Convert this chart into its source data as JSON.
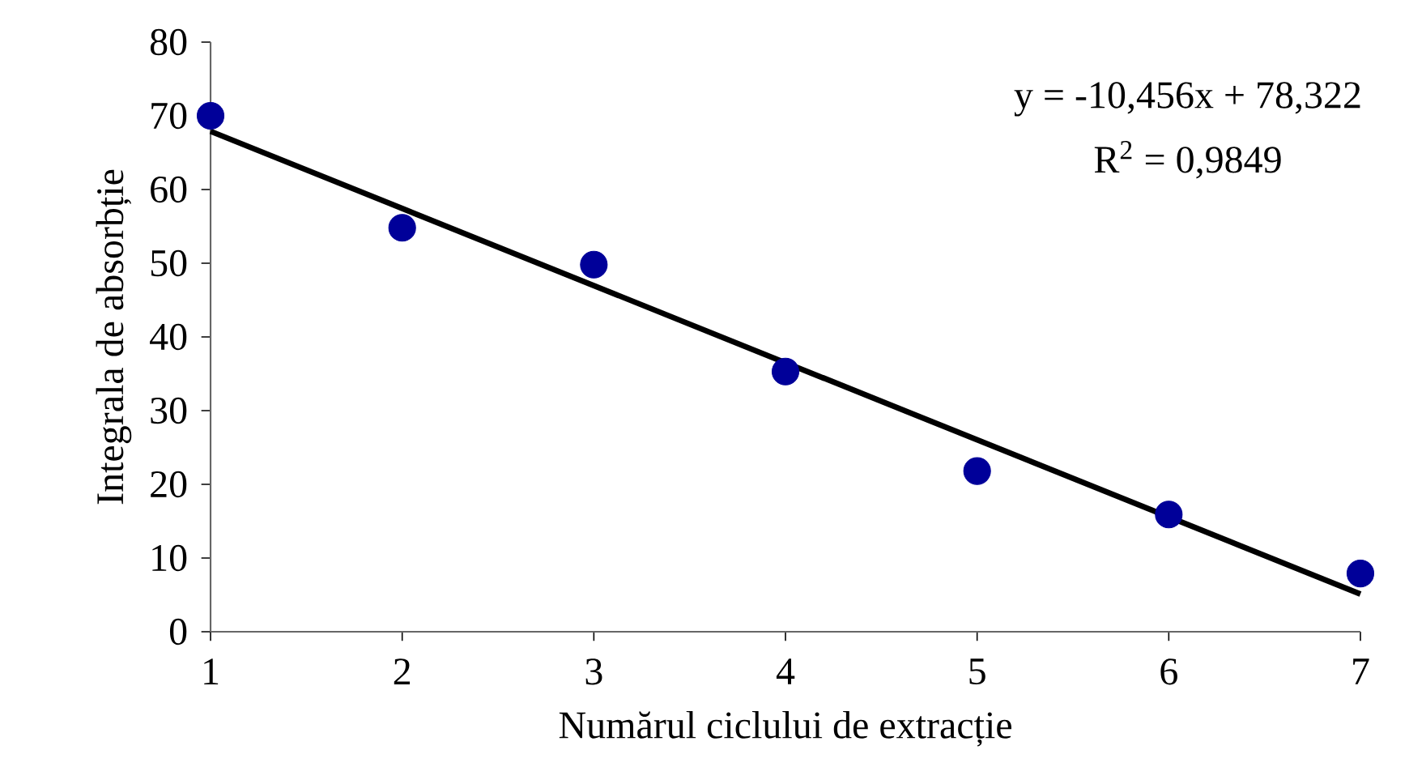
{
  "chart_data": {
    "type": "scatter",
    "xlabel": "Numărul ciclului de extracție",
    "ylabel": "Integrala de absorbție",
    "annotations": [
      "y = -10,456x + 78,322",
      "R$^{2}$ = 0,9849"
    ],
    "xlim": [
      1,
      7
    ],
    "xticks": [
      1,
      2,
      3,
      4,
      5,
      6,
      7
    ],
    "ylim": [
      0,
      80
    ],
    "yticks": [
      0,
      10,
      20,
      30,
      40,
      50,
      60,
      70,
      80
    ],
    "series": [
      {
        "color": "#000099",
        "marker": "circle",
        "x": [
          1,
          2,
          3,
          4,
          5,
          6,
          7
        ],
        "values": [
          70,
          54.8,
          49.8,
          35.3,
          21.8,
          15.9,
          7.9
        ]
      },
      {
        "type": "line",
        "color": "#000000",
        "marker": "none",
        "x": [
          1,
          7
        ],
        "values": [
          67.9,
          5.1
        ]
      }
    ]
  }
}
